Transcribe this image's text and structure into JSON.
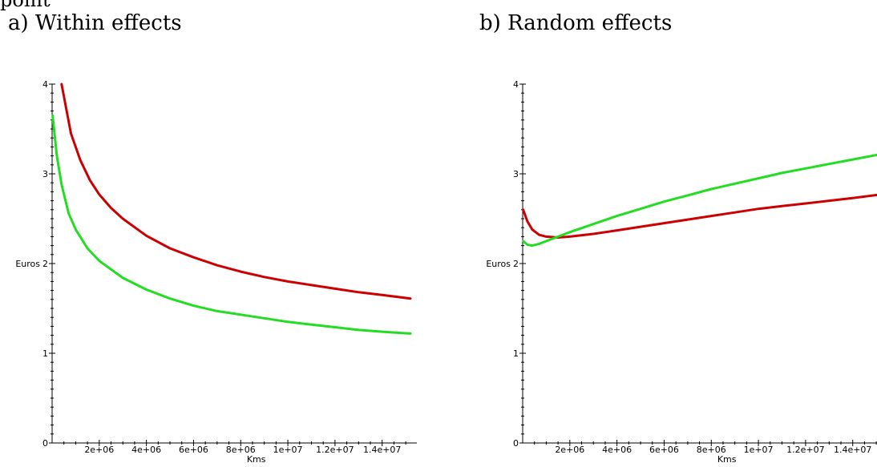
{
  "header_fragment": "point",
  "chart_data": [
    {
      "type": "line",
      "title": "a) Within effects",
      "xlabel": "Kms",
      "ylabel": "Euros",
      "xlim": [
        0,
        15200000
      ],
      "ylim": [
        0,
        4
      ],
      "x_ticks": [
        2000000,
        4000000,
        6000000,
        8000000,
        10000000,
        12000000,
        14000000
      ],
      "x_tick_labels": [
        "2e+06",
        "4e+06",
        "6e+06",
        "8e+06",
        "1e+07",
        "1.2e+07",
        "1.4e+07"
      ],
      "y_ticks": [
        0,
        1,
        2,
        3,
        4
      ],
      "y_tick_labels": [
        "0",
        "1",
        "2",
        "3",
        "4"
      ],
      "grid": false,
      "series": [
        {
          "color": "#cc0000",
          "x": [
            400000,
            800000,
            1200000,
            1600000,
            2000000,
            2500000,
            3000000,
            4000000,
            5000000,
            6000000,
            7000000,
            8000000,
            9000000,
            10000000,
            11000000,
            12000000,
            13000000,
            14000000,
            15200000
          ],
          "y": [
            4.0,
            3.45,
            3.15,
            2.93,
            2.77,
            2.62,
            2.5,
            2.31,
            2.17,
            2.07,
            1.98,
            1.91,
            1.85,
            1.8,
            1.76,
            1.72,
            1.68,
            1.65,
            1.61
          ]
        },
        {
          "color": "#22dd22",
          "x": [
            20000,
            200000,
            400000,
            700000,
            1000000,
            1500000,
            2000000,
            3000000,
            4000000,
            5000000,
            6000000,
            7000000,
            8000000,
            9000000,
            10000000,
            11000000,
            12000000,
            13000000,
            14000000,
            15200000
          ],
          "y": [
            3.65,
            3.2,
            2.88,
            2.56,
            2.38,
            2.17,
            2.03,
            1.84,
            1.71,
            1.61,
            1.53,
            1.47,
            1.43,
            1.39,
            1.35,
            1.32,
            1.29,
            1.26,
            1.24,
            1.22
          ]
        }
      ]
    },
    {
      "type": "line",
      "title": "b) Random effects",
      "xlabel": "Kms",
      "ylabel": "Euros",
      "xlim": [
        0,
        15200000
      ],
      "ylim": [
        0,
        4
      ],
      "x_ticks": [
        2000000,
        4000000,
        6000000,
        8000000,
        10000000,
        12000000,
        14000000
      ],
      "x_tick_labels": [
        "2e+06",
        "4e+06",
        "6e+06",
        "8e+06",
        "1e+07",
        "1.2e+07",
        "1.4e+07"
      ],
      "y_ticks": [
        0,
        1,
        2,
        3,
        4
      ],
      "y_tick_labels": [
        "0",
        "1",
        "2",
        "3",
        "4"
      ],
      "grid": false,
      "series": [
        {
          "color": "#cc0000",
          "x": [
            20000,
            200000,
            400000,
            700000,
            1000000,
            1500000,
            2000000,
            3000000,
            4000000,
            5000000,
            6000000,
            7000000,
            8000000,
            9000000,
            10000000,
            11000000,
            12000000,
            13000000,
            14000000,
            15200000
          ],
          "y": [
            2.6,
            2.47,
            2.38,
            2.32,
            2.3,
            2.29,
            2.3,
            2.33,
            2.37,
            2.41,
            2.45,
            2.49,
            2.53,
            2.57,
            2.61,
            2.64,
            2.67,
            2.7,
            2.73,
            2.77
          ]
        },
        {
          "color": "#22dd22",
          "x": [
            20000,
            200000,
            400000,
            700000,
            1000000,
            1500000,
            2000000,
            3000000,
            4000000,
            5000000,
            6000000,
            7000000,
            8000000,
            9000000,
            10000000,
            11000000,
            12000000,
            13000000,
            14000000,
            15200000
          ],
          "y": [
            2.25,
            2.21,
            2.2,
            2.22,
            2.25,
            2.3,
            2.35,
            2.44,
            2.53,
            2.61,
            2.69,
            2.76,
            2.83,
            2.89,
            2.95,
            3.01,
            3.06,
            3.11,
            3.16,
            3.22
          ]
        }
      ]
    }
  ]
}
